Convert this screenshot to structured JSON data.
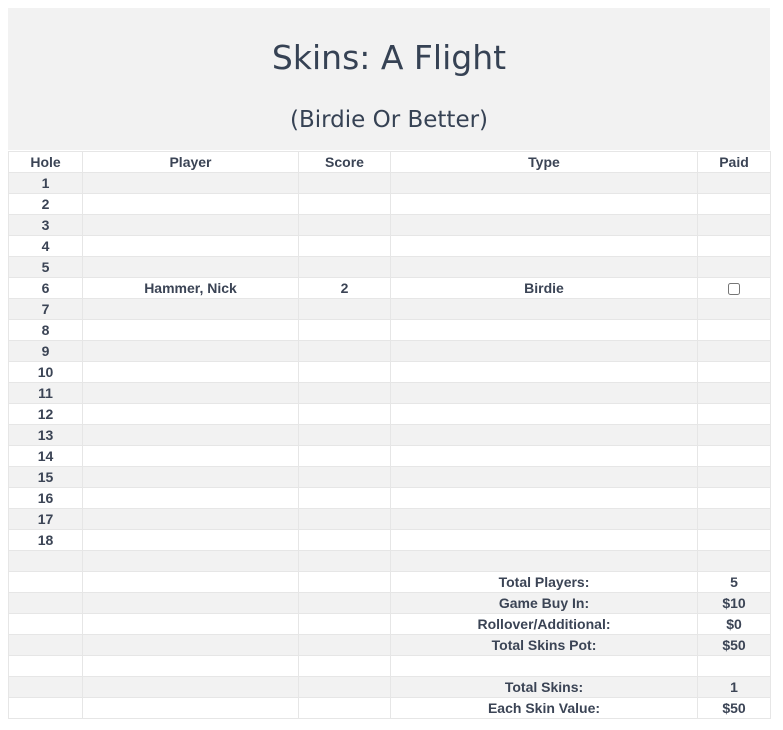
{
  "header": {
    "title": "Skins: A Flight",
    "subtitle": "(Birdie Or Better)"
  },
  "columns": [
    "Hole",
    "Player",
    "Score",
    "Type",
    "Paid"
  ],
  "holes": [
    {
      "hole": "1",
      "player": "",
      "score": "",
      "type": "",
      "paid": null
    },
    {
      "hole": "2",
      "player": "",
      "score": "",
      "type": "",
      "paid": null
    },
    {
      "hole": "3",
      "player": "",
      "score": "",
      "type": "",
      "paid": null
    },
    {
      "hole": "4",
      "player": "",
      "score": "",
      "type": "",
      "paid": null
    },
    {
      "hole": "5",
      "player": "",
      "score": "",
      "type": "",
      "paid": null
    },
    {
      "hole": "6",
      "player": "Hammer, Nick",
      "score": "2",
      "type": "Birdie",
      "paid": false
    },
    {
      "hole": "7",
      "player": "",
      "score": "",
      "type": "",
      "paid": null
    },
    {
      "hole": "8",
      "player": "",
      "score": "",
      "type": "",
      "paid": null
    },
    {
      "hole": "9",
      "player": "",
      "score": "",
      "type": "",
      "paid": null
    },
    {
      "hole": "10",
      "player": "",
      "score": "",
      "type": "",
      "paid": null
    },
    {
      "hole": "11",
      "player": "",
      "score": "",
      "type": "",
      "paid": null
    },
    {
      "hole": "12",
      "player": "",
      "score": "",
      "type": "",
      "paid": null
    },
    {
      "hole": "13",
      "player": "",
      "score": "",
      "type": "",
      "paid": null
    },
    {
      "hole": "14",
      "player": "",
      "score": "",
      "type": "",
      "paid": null
    },
    {
      "hole": "15",
      "player": "",
      "score": "",
      "type": "",
      "paid": null
    },
    {
      "hole": "16",
      "player": "",
      "score": "",
      "type": "",
      "paid": null
    },
    {
      "hole": "17",
      "player": "",
      "score": "",
      "type": "",
      "paid": null
    },
    {
      "hole": "18",
      "player": "",
      "score": "",
      "type": "",
      "paid": null
    }
  ],
  "summary": [
    {
      "label": "",
      "value": ""
    },
    {
      "label": "Total Players:",
      "value": "5"
    },
    {
      "label": "Game Buy In:",
      "value": "$10"
    },
    {
      "label": "Rollover/Additional:",
      "value": "$0"
    },
    {
      "label": "Total Skins Pot:",
      "value": "$50"
    },
    {
      "label": "",
      "value": ""
    },
    {
      "label": "Total Skins:",
      "value": "1"
    },
    {
      "label": "Each Skin Value:",
      "value": "$50"
    }
  ]
}
